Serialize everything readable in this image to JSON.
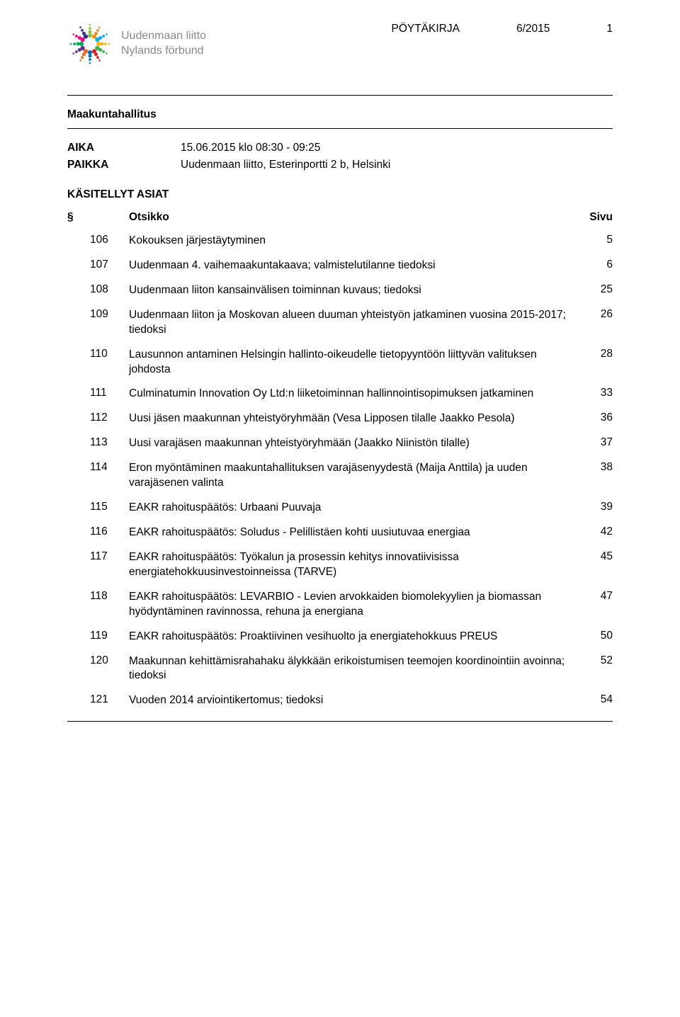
{
  "header": {
    "doc_type": "PÖYTÄKIRJA",
    "doc_number": "6/2015",
    "page_number_top": "1",
    "org_line1": "Uudenmaan liitto",
    "org_line2": "Nylands förbund"
  },
  "logo_colors": [
    "#8dc63f",
    "#f7941e",
    "#00aeef",
    "#fdb913",
    "#39b54a",
    "#ed1c24",
    "#0072bc",
    "#f26522",
    "#662d91",
    "#00a651",
    "#ec008c",
    "#2e3192"
  ],
  "meeting": {
    "title": "Maakuntahallitus",
    "time_label": "AIKA",
    "time_value": "15.06.2015 klo 08:30 - 09:25",
    "place_label": "PAIKKA",
    "place_value": "Uudenmaan liitto, Esterinportti 2 b, Helsinki",
    "items_heading": "KÄSITELLYT ASIAT"
  },
  "toc": {
    "col_sym": "§",
    "col_title": "Otsikko",
    "col_page": "Sivu",
    "items": [
      {
        "num": "106",
        "title": "Kokouksen järjestäytyminen",
        "page": "5"
      },
      {
        "num": "107",
        "title": "Uudenmaan 4. vaihemaakuntakaava; valmistelutilanne tiedoksi",
        "page": "6"
      },
      {
        "num": "108",
        "title": "Uudenmaan liiton kansainvälisen toiminnan kuvaus; tiedoksi",
        "page": "25"
      },
      {
        "num": "109",
        "title": "Uudenmaan liiton ja Moskovan alueen duuman yhteistyön jatkaminen vuosina 2015-2017; tiedoksi",
        "page": "26"
      },
      {
        "num": "110",
        "title": "Lausunnon antaminen Helsingin hallinto-oikeudelle tietopyyntöön liittyvän valituksen johdosta",
        "page": "28"
      },
      {
        "num": "111",
        "title": "Culminatumin Innovation Oy Ltd:n liiketoiminnan hallinnointisopimuksen jatkaminen",
        "page": "33"
      },
      {
        "num": "112",
        "title": "Uusi jäsen maakunnan yhteistyöryhmään (Vesa Lipposen tilalle Jaakko Pesola)",
        "page": "36"
      },
      {
        "num": "113",
        "title": "Uusi varajäsen maakunnan yhteistyöryhmään (Jaakko Niinistön tilalle)",
        "page": "37"
      },
      {
        "num": "114",
        "title": "Eron myöntäminen maakuntahallituksen varajäsenyydestä (Maija Anttila) ja uuden varajäsenen valinta",
        "page": "38"
      },
      {
        "num": "115",
        "title": "EAKR rahoituspäätös: Urbaani Puuvaja",
        "page": "39"
      },
      {
        "num": "116",
        "title": "EAKR rahoituspäätös: Soludus - Pelillistäen kohti uusiutuvaa energiaa",
        "page": "42"
      },
      {
        "num": "117",
        "title": "EAKR rahoituspäätös: Työkalun ja prosessin kehitys innovatiivisissa energiatehokkuusinvestoinneissa (TARVE)",
        "page": "45"
      },
      {
        "num": "118",
        "title": "EAKR rahoituspäätös: LEVARBIO - Levien arvokkaiden biomolekyylien ja biomassan hyödyntäminen ravinnossa, rehuna ja energiana",
        "page": "47"
      },
      {
        "num": "119",
        "title": "EAKR rahoituspäätös: Proaktiivinen vesihuolto ja energiatehokkuus PREUS",
        "page": "50"
      },
      {
        "num": "120",
        "title": "Maakunnan kehittämisrahahaku älykkään erikoistumisen teemojen koordinointiin avoinna; tiedoksi",
        "page": "52"
      },
      {
        "num": "121",
        "title": "Vuoden 2014 arviointikertomus; tiedoksi",
        "page": "54"
      }
    ]
  }
}
